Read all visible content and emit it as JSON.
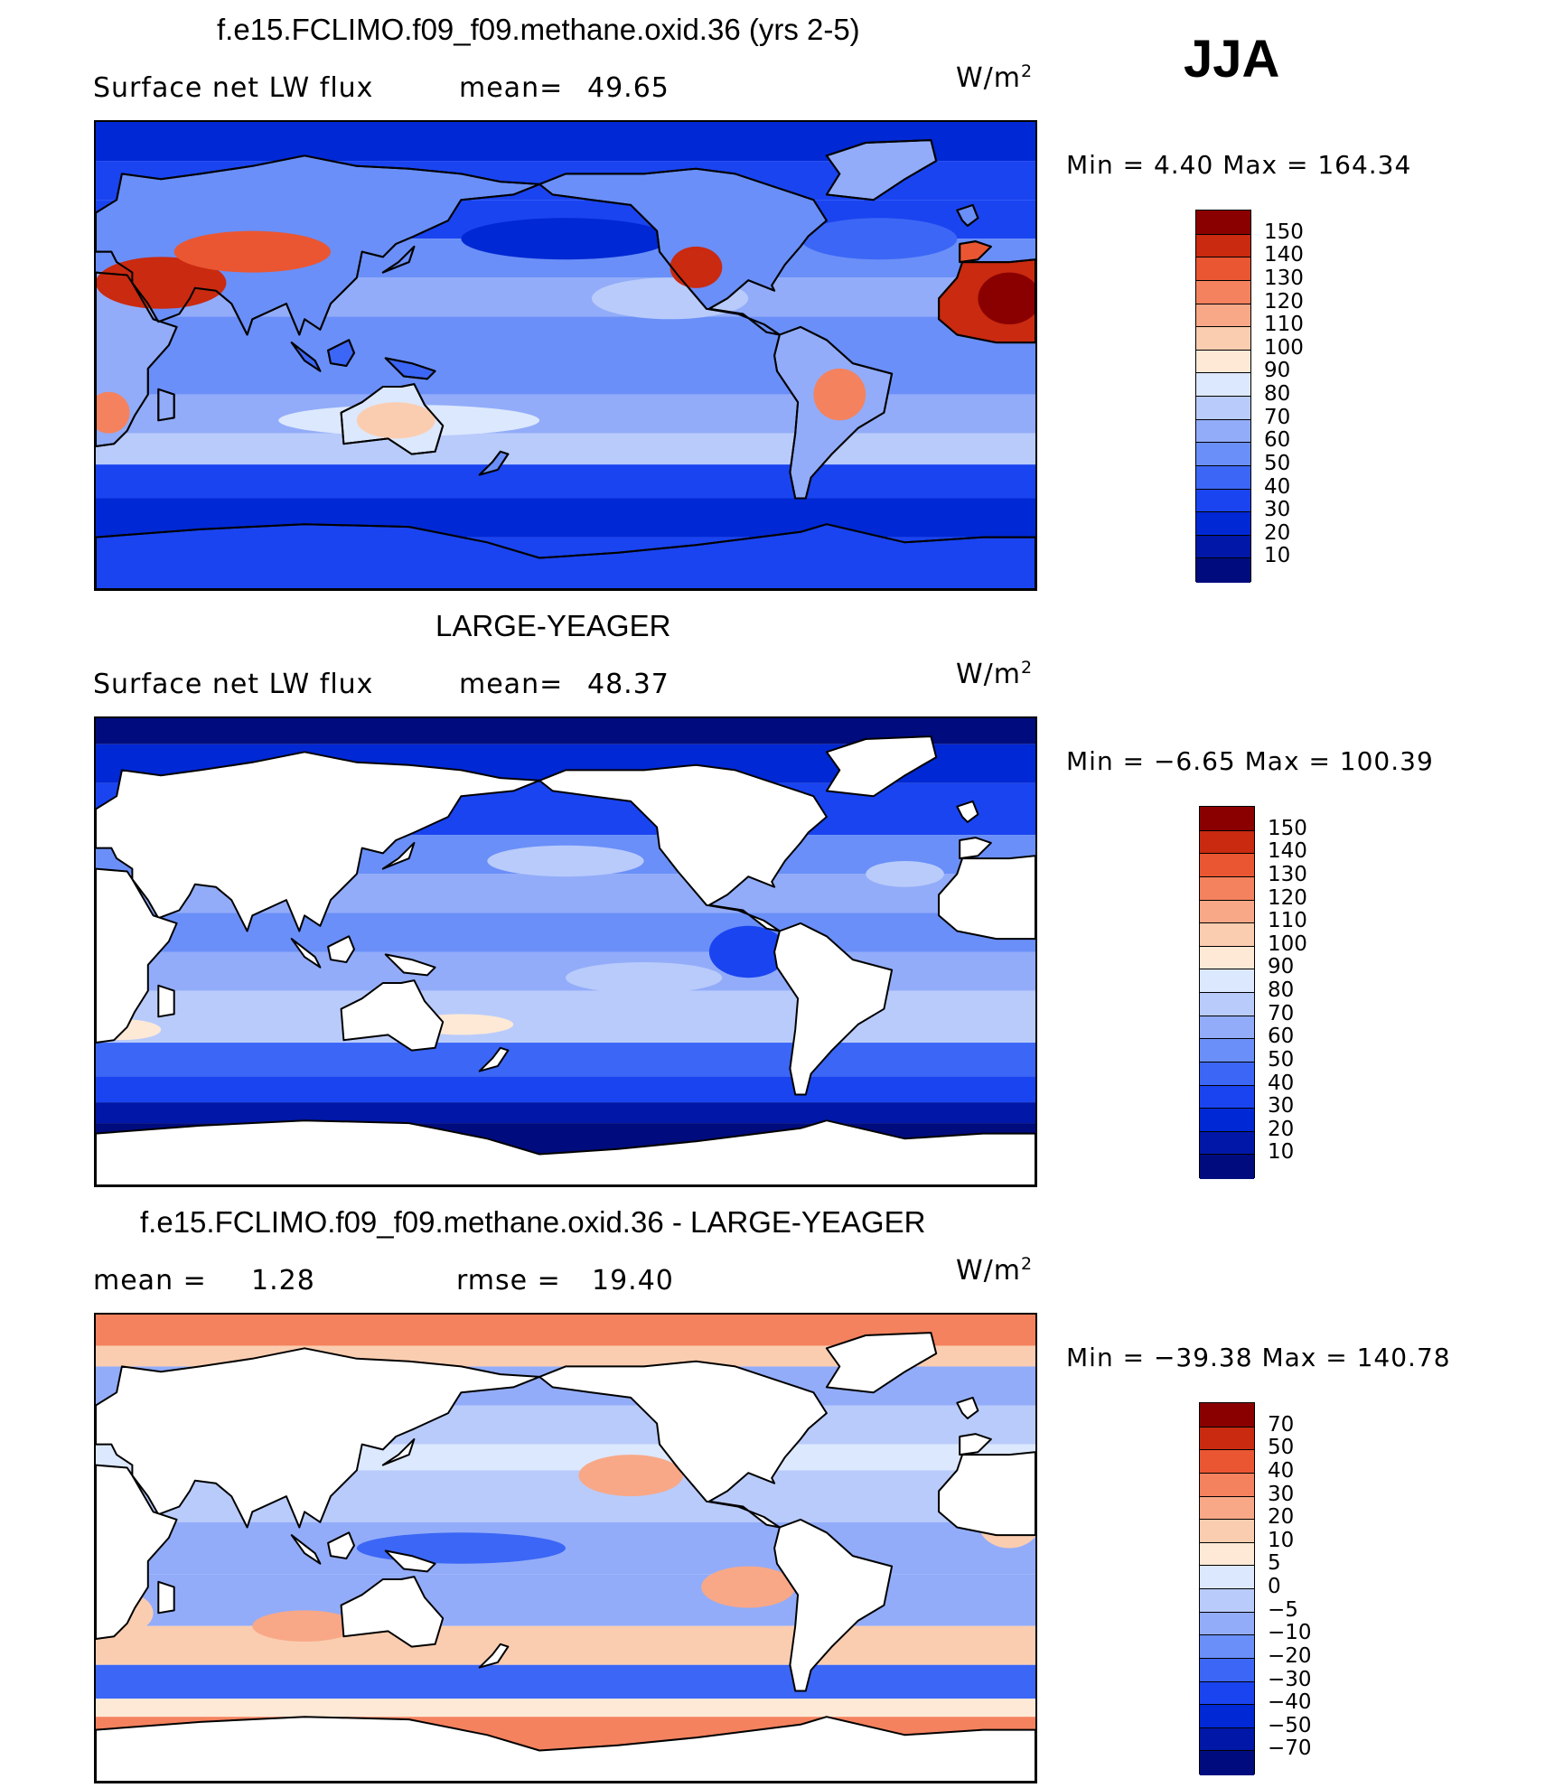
{
  "season": "JJA",
  "panels": [
    {
      "title": "f.e15.FCLIMO.f09_f09.methane.oxid.36 (yrs 2-5)",
      "left_label": "Surface net LW flux",
      "stat_label": "mean=",
      "stat_value": "49.65",
      "units": "W/m",
      "units_exp": "2",
      "minmax": "Min =    4.40 Max = 164.34",
      "mask_land": false
    },
    {
      "title": "LARGE-YEAGER",
      "left_label": "Surface net LW flux",
      "stat_label": "mean=",
      "stat_value": "48.37",
      "units": "W/m",
      "units_exp": "2",
      "minmax": "Min =  −6.65 Max = 100.39",
      "mask_land": true
    },
    {
      "title": "f.e15.FCLIMO.f09_f09.methane.oxid.36 - LARGE-YEAGER",
      "left_label": "mean =",
      "left_value": "1.28",
      "stat_label": "rmse =",
      "stat_value": "19.40",
      "units": "W/m",
      "units_exp": "2",
      "minmax": "Min = −39.38 Max = 140.78",
      "mask_land": true
    }
  ],
  "chart_data": [
    {
      "type": "heatmap",
      "title": "f.e15.FCLIMO.f09_f09.methane.oxid.36 (yrs 2-5)",
      "variable": "Surface net LW flux",
      "units": "W/m2",
      "season": "JJA",
      "mean": 49.65,
      "min": 4.4,
      "max": 164.34,
      "colorbar_levels": [
        10,
        20,
        30,
        40,
        50,
        60,
        70,
        80,
        90,
        100,
        110,
        120,
        130,
        140,
        150
      ],
      "colorbar_labels": [
        "150",
        "140",
        "130",
        "120",
        "110",
        "100",
        "90",
        "80",
        "70",
        "60",
        "50",
        "40",
        "30",
        "20",
        "10"
      ],
      "colors": [
        "#000c7d",
        "#0017a7",
        "#0028d4",
        "#1a44f0",
        "#3c66f5",
        "#6a8ff8",
        "#92acf9",
        "#b9cbfb",
        "#dce8fd",
        "#fde9d6",
        "#fbcdb0",
        "#f8a887",
        "#f4825e",
        "#ea5632",
        "#c92a10",
        "#8a0000"
      ]
    },
    {
      "type": "heatmap",
      "title": "LARGE-YEAGER",
      "variable": "Surface net LW flux",
      "units": "W/m2",
      "season": "JJA",
      "mean": 48.37,
      "min": -6.65,
      "max": 100.39,
      "colorbar_levels": [
        10,
        20,
        30,
        40,
        50,
        60,
        70,
        80,
        90,
        100,
        110,
        120,
        130,
        140,
        150
      ],
      "colorbar_labels": [
        "150",
        "140",
        "130",
        "120",
        "110",
        "100",
        "90",
        "80",
        "70",
        "60",
        "50",
        "40",
        "30",
        "20",
        "10"
      ],
      "colors": [
        "#000c7d",
        "#0017a7",
        "#0028d4",
        "#1a44f0",
        "#3c66f5",
        "#6a8ff8",
        "#92acf9",
        "#b9cbfb",
        "#dce8fd",
        "#fde9d6",
        "#fbcdb0",
        "#f8a887",
        "#f4825e",
        "#ea5632",
        "#c92a10",
        "#8a0000"
      ]
    },
    {
      "type": "heatmap",
      "title": "f.e15.FCLIMO.f09_f09.methane.oxid.36 - LARGE-YEAGER",
      "units": "W/m2",
      "season": "JJA",
      "mean": 1.28,
      "rmse": 19.4,
      "min": -39.38,
      "max": 140.78,
      "colorbar_levels": [
        -70,
        -50,
        -40,
        -30,
        -20,
        -10,
        -5,
        0,
        5,
        10,
        20,
        30,
        40,
        50,
        70
      ],
      "colorbar_labels": [
        "70",
        "50",
        "40",
        "30",
        "20",
        "10",
        "5",
        "0",
        "−5",
        "−10",
        "−20",
        "−30",
        "−40",
        "−50",
        "−70"
      ],
      "colors": [
        "#000c7d",
        "#0017a7",
        "#0028d4",
        "#1a44f0",
        "#3c66f5",
        "#6a8ff8",
        "#92acf9",
        "#b9cbfb",
        "#dce8fd",
        "#fde9d6",
        "#fbcdb0",
        "#f8a887",
        "#f4825e",
        "#ea5632",
        "#c92a10",
        "#8a0000"
      ]
    }
  ]
}
